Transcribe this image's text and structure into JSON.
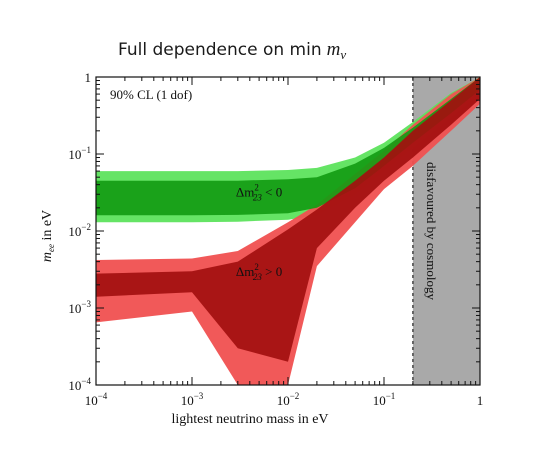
{
  "chart_data": {
    "type": "area",
    "title": "Full dependence on min",
    "title_symbol": "m",
    "title_symbol_sub": "ν",
    "xlabel": "lightest neutrino mass in eV",
    "ylabel_symbol": "m",
    "ylabel_sub": "ee",
    "ylabel_unit": " in eV",
    "x_scale": "log",
    "y_scale": "log",
    "xlim": [
      0.0001,
      1
    ],
    "ylim": [
      0.0001,
      1
    ],
    "x_ticks": [
      {
        "value": 0.0001,
        "base": "10",
        "exp": "−4"
      },
      {
        "value": 0.001,
        "base": "10",
        "exp": "−3"
      },
      {
        "value": 0.01,
        "base": "10",
        "exp": "−2"
      },
      {
        "value": 0.1,
        "base": "10",
        "exp": "−1"
      },
      {
        "value": 1,
        "base": "1",
        "exp": ""
      }
    ],
    "y_ticks": [
      {
        "value": 0.0001,
        "base": "10",
        "exp": "−4"
      },
      {
        "value": 0.001,
        "base": "10",
        "exp": "−3"
      },
      {
        "value": 0.01,
        "base": "10",
        "exp": "−2"
      },
      {
        "value": 0.1,
        "base": "10",
        "exp": "−1"
      },
      {
        "value": 1,
        "base": "1",
        "exp": ""
      }
    ],
    "confidence_label": "90% CL (1 dof)",
    "excluded_region": {
      "x_from": 0.2,
      "x_to": 1,
      "label": "disfavoured by cosmology",
      "color": "#a9a9a9"
    },
    "bands": [
      {
        "label_prefix": "Δm",
        "label_sup": "2",
        "label_sub": "23",
        "label_relation": " < 0",
        "outer_color": "#5de35d",
        "inner_color": "#139c13",
        "x": [
          0.0001,
          0.001,
          0.003,
          0.01,
          0.02,
          0.05,
          0.1,
          0.2,
          0.5,
          1
        ],
        "outer_lo": [
          0.013,
          0.013,
          0.0132,
          0.014,
          0.016,
          0.03,
          0.06,
          0.12,
          0.3,
          0.6
        ],
        "outer_hi": [
          0.06,
          0.06,
          0.06,
          0.062,
          0.066,
          0.09,
          0.14,
          0.26,
          0.62,
          1.2
        ],
        "inner_lo": [
          0.016,
          0.016,
          0.0162,
          0.017,
          0.02,
          0.036,
          0.07,
          0.14,
          0.34,
          0.68
        ],
        "inner_hi": [
          0.045,
          0.045,
          0.045,
          0.047,
          0.05,
          0.075,
          0.12,
          0.22,
          0.52,
          1.0
        ]
      },
      {
        "label_prefix": "Δm",
        "label_sup": "2",
        "label_sub": "23",
        "label_relation": " > 0",
        "outer_color": "#f05050",
        "inner_color": "#a30f0f",
        "x": [
          0.0001,
          0.001,
          0.003,
          0.01,
          0.02,
          0.05,
          0.1,
          0.2,
          0.5,
          1
        ],
        "outer_lo": [
          0.00065,
          0.0009,
          0.0001,
          0.0001,
          0.0035,
          0.013,
          0.035,
          0.07,
          0.2,
          0.45
        ],
        "outer_hi": [
          0.0042,
          0.0044,
          0.0055,
          0.013,
          0.022,
          0.055,
          0.11,
          0.24,
          0.6,
          1.2
        ],
        "inner_lo": [
          0.0014,
          0.0016,
          0.0003,
          0.0002,
          0.006,
          0.02,
          0.045,
          0.09,
          0.24,
          0.52
        ],
        "inner_hi": [
          0.0028,
          0.003,
          0.004,
          0.0105,
          0.019,
          0.045,
          0.09,
          0.2,
          0.5,
          1.0
        ]
      }
    ]
  }
}
